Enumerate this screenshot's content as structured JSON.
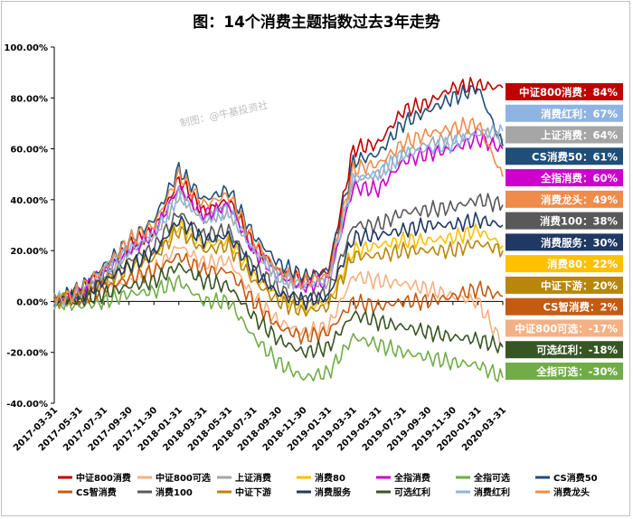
{
  "chart_data": {
    "type": "line",
    "title": "图：14个消费主题指数过去3年走势",
    "watermark": "制图：@牛基投资社",
    "ylim": [
      -40,
      100
    ],
    "yticks": [
      -40,
      -20,
      0,
      20,
      40,
      60,
      80,
      100
    ],
    "ytick_labels": [
      "-40.00%",
      "-20.00%",
      "0.00%",
      "20.00%",
      "40.00%",
      "60.00%",
      "80.00%",
      "100.00%"
    ],
    "categories": [
      "2017-03-31",
      "2017-05-31",
      "2017-07-31",
      "2017-09-30",
      "2017-11-30",
      "2018-01-31",
      "2018-03-31",
      "2018-05-31",
      "2018-07-31",
      "2018-09-30",
      "2018-11-30",
      "2019-01-31",
      "2019-03-31",
      "2019-05-31",
      "2019-07-31",
      "2019-09-30",
      "2019-11-30",
      "2020-01-31",
      "2020-03-31"
    ],
    "series": [
      {
        "name": "中证800消费",
        "color": "#c00000",
        "end_label": "中证800消费：84%",
        "values": [
          0,
          4,
          12,
          22,
          28,
          48,
          35,
          40,
          22,
          12,
          8,
          12,
          60,
          62,
          75,
          78,
          84,
          85,
          84
        ]
      },
      {
        "name": "中证800可选",
        "color": "#f4b183",
        "end_label": "中证800可选：-17%",
        "values": [
          0,
          0,
          5,
          8,
          12,
          22,
          15,
          16,
          2,
          -8,
          -12,
          -10,
          10,
          8,
          7,
          5,
          2,
          0,
          -17
        ]
      },
      {
        "name": "上证消费",
        "color": "#a6a6a6",
        "end_label": "上证消费：64%",
        "values": [
          0,
          3,
          11,
          20,
          26,
          42,
          32,
          36,
          20,
          10,
          6,
          8,
          48,
          50,
          58,
          62,
          64,
          67,
          64
        ]
      },
      {
        "name": "消费80",
        "color": "#ffc000",
        "end_label": "消费80：22%",
        "values": [
          0,
          2,
          8,
          14,
          18,
          30,
          22,
          24,
          10,
          2,
          -2,
          0,
          20,
          22,
          24,
          24,
          25,
          28,
          22
        ]
      },
      {
        "name": "全指消费",
        "color": "#cc00cc",
        "end_label": "全指消费：60%",
        "values": [
          0,
          3,
          11,
          20,
          27,
          45,
          34,
          38,
          20,
          10,
          6,
          8,
          45,
          44,
          55,
          58,
          60,
          64,
          60
        ]
      },
      {
        "name": "全指可选",
        "color": "#70ad47",
        "end_label": "全指可选：-30%",
        "values": [
          0,
          -2,
          0,
          3,
          4,
          8,
          0,
          0,
          -14,
          -24,
          -30,
          -28,
          -14,
          -17,
          -20,
          -22,
          -24,
          -25,
          -30
        ]
      },
      {
        "name": "CS消费50",
        "color": "#1f4e79",
        "end_label": "CS消费50：61%",
        "values": [
          0,
          5,
          14,
          24,
          32,
          52,
          40,
          44,
          26,
          15,
          10,
          12,
          55,
          58,
          70,
          75,
          80,
          84,
          61
        ]
      },
      {
        "name": "CS智消费",
        "color": "#c55a11",
        "end_label": "CS智消费：2%",
        "values": [
          0,
          1,
          5,
          9,
          12,
          18,
          12,
          12,
          0,
          -10,
          -14,
          -12,
          0,
          -2,
          0,
          0,
          2,
          5,
          2
        ]
      },
      {
        "name": "消费100",
        "color": "#595959",
        "end_label": "消费100：38%",
        "values": [
          0,
          2,
          9,
          16,
          21,
          35,
          26,
          28,
          14,
          5,
          1,
          3,
          30,
          30,
          35,
          36,
          37,
          40,
          38
        ]
      },
      {
        "name": "中证下游",
        "color": "#b8860b",
        "end_label": "中证下游：20%",
        "values": [
          0,
          2,
          8,
          13,
          17,
          28,
          20,
          22,
          8,
          0,
          -4,
          -2,
          18,
          18,
          20,
          20,
          20,
          23,
          20
        ]
      },
      {
        "name": "消费服务",
        "color": "#203864",
        "end_label": "消费服务：30%",
        "values": [
          0,
          2,
          8,
          14,
          19,
          32,
          24,
          26,
          12,
          3,
          0,
          2,
          25,
          26,
          28,
          30,
          30,
          32,
          30
        ]
      },
      {
        "name": "可选红利",
        "color": "#375623",
        "end_label": "可选红利：-18%",
        "values": [
          0,
          0,
          3,
          6,
          8,
          14,
          8,
          6,
          -6,
          -15,
          -20,
          -18,
          -5,
          -8,
          -10,
          -12,
          -14,
          -15,
          -18
        ]
      },
      {
        "name": "消费红利",
        "color": "#8eb4e3",
        "end_label": "消费红利：67%",
        "values": [
          0,
          3,
          12,
          20,
          26,
          42,
          32,
          36,
          20,
          10,
          6,
          9,
          48,
          50,
          58,
          60,
          62,
          66,
          67
        ]
      },
      {
        "name": "消费龙头",
        "color": "#f08c4a",
        "end_label": "消费龙头：49%",
        "values": [
          0,
          4,
          13,
          24,
          30,
          50,
          38,
          42,
          24,
          12,
          8,
          10,
          52,
          54,
          62,
          66,
          68,
          70,
          49
        ]
      }
    ],
    "end_label_order": [
      "中证800消费",
      "消费红利",
      "上证消费",
      "CS消费50",
      "全指消费",
      "消费龙头",
      "消费100",
      "消费服务",
      "消费80",
      "中证下游",
      "CS智消费",
      "中证800可选",
      "可选红利",
      "全指可选"
    ],
    "legend_order": [
      "中证800消费",
      "中证800可选",
      "上证消费",
      "消费80",
      "全指消费",
      "全指可选",
      "CS消费50",
      "CS智消费",
      "消费100",
      "中证下游",
      "消费服务",
      "可选红利",
      "消费红利",
      "消费龙头"
    ],
    "legend_position": "bottom",
    "grid": false
  }
}
